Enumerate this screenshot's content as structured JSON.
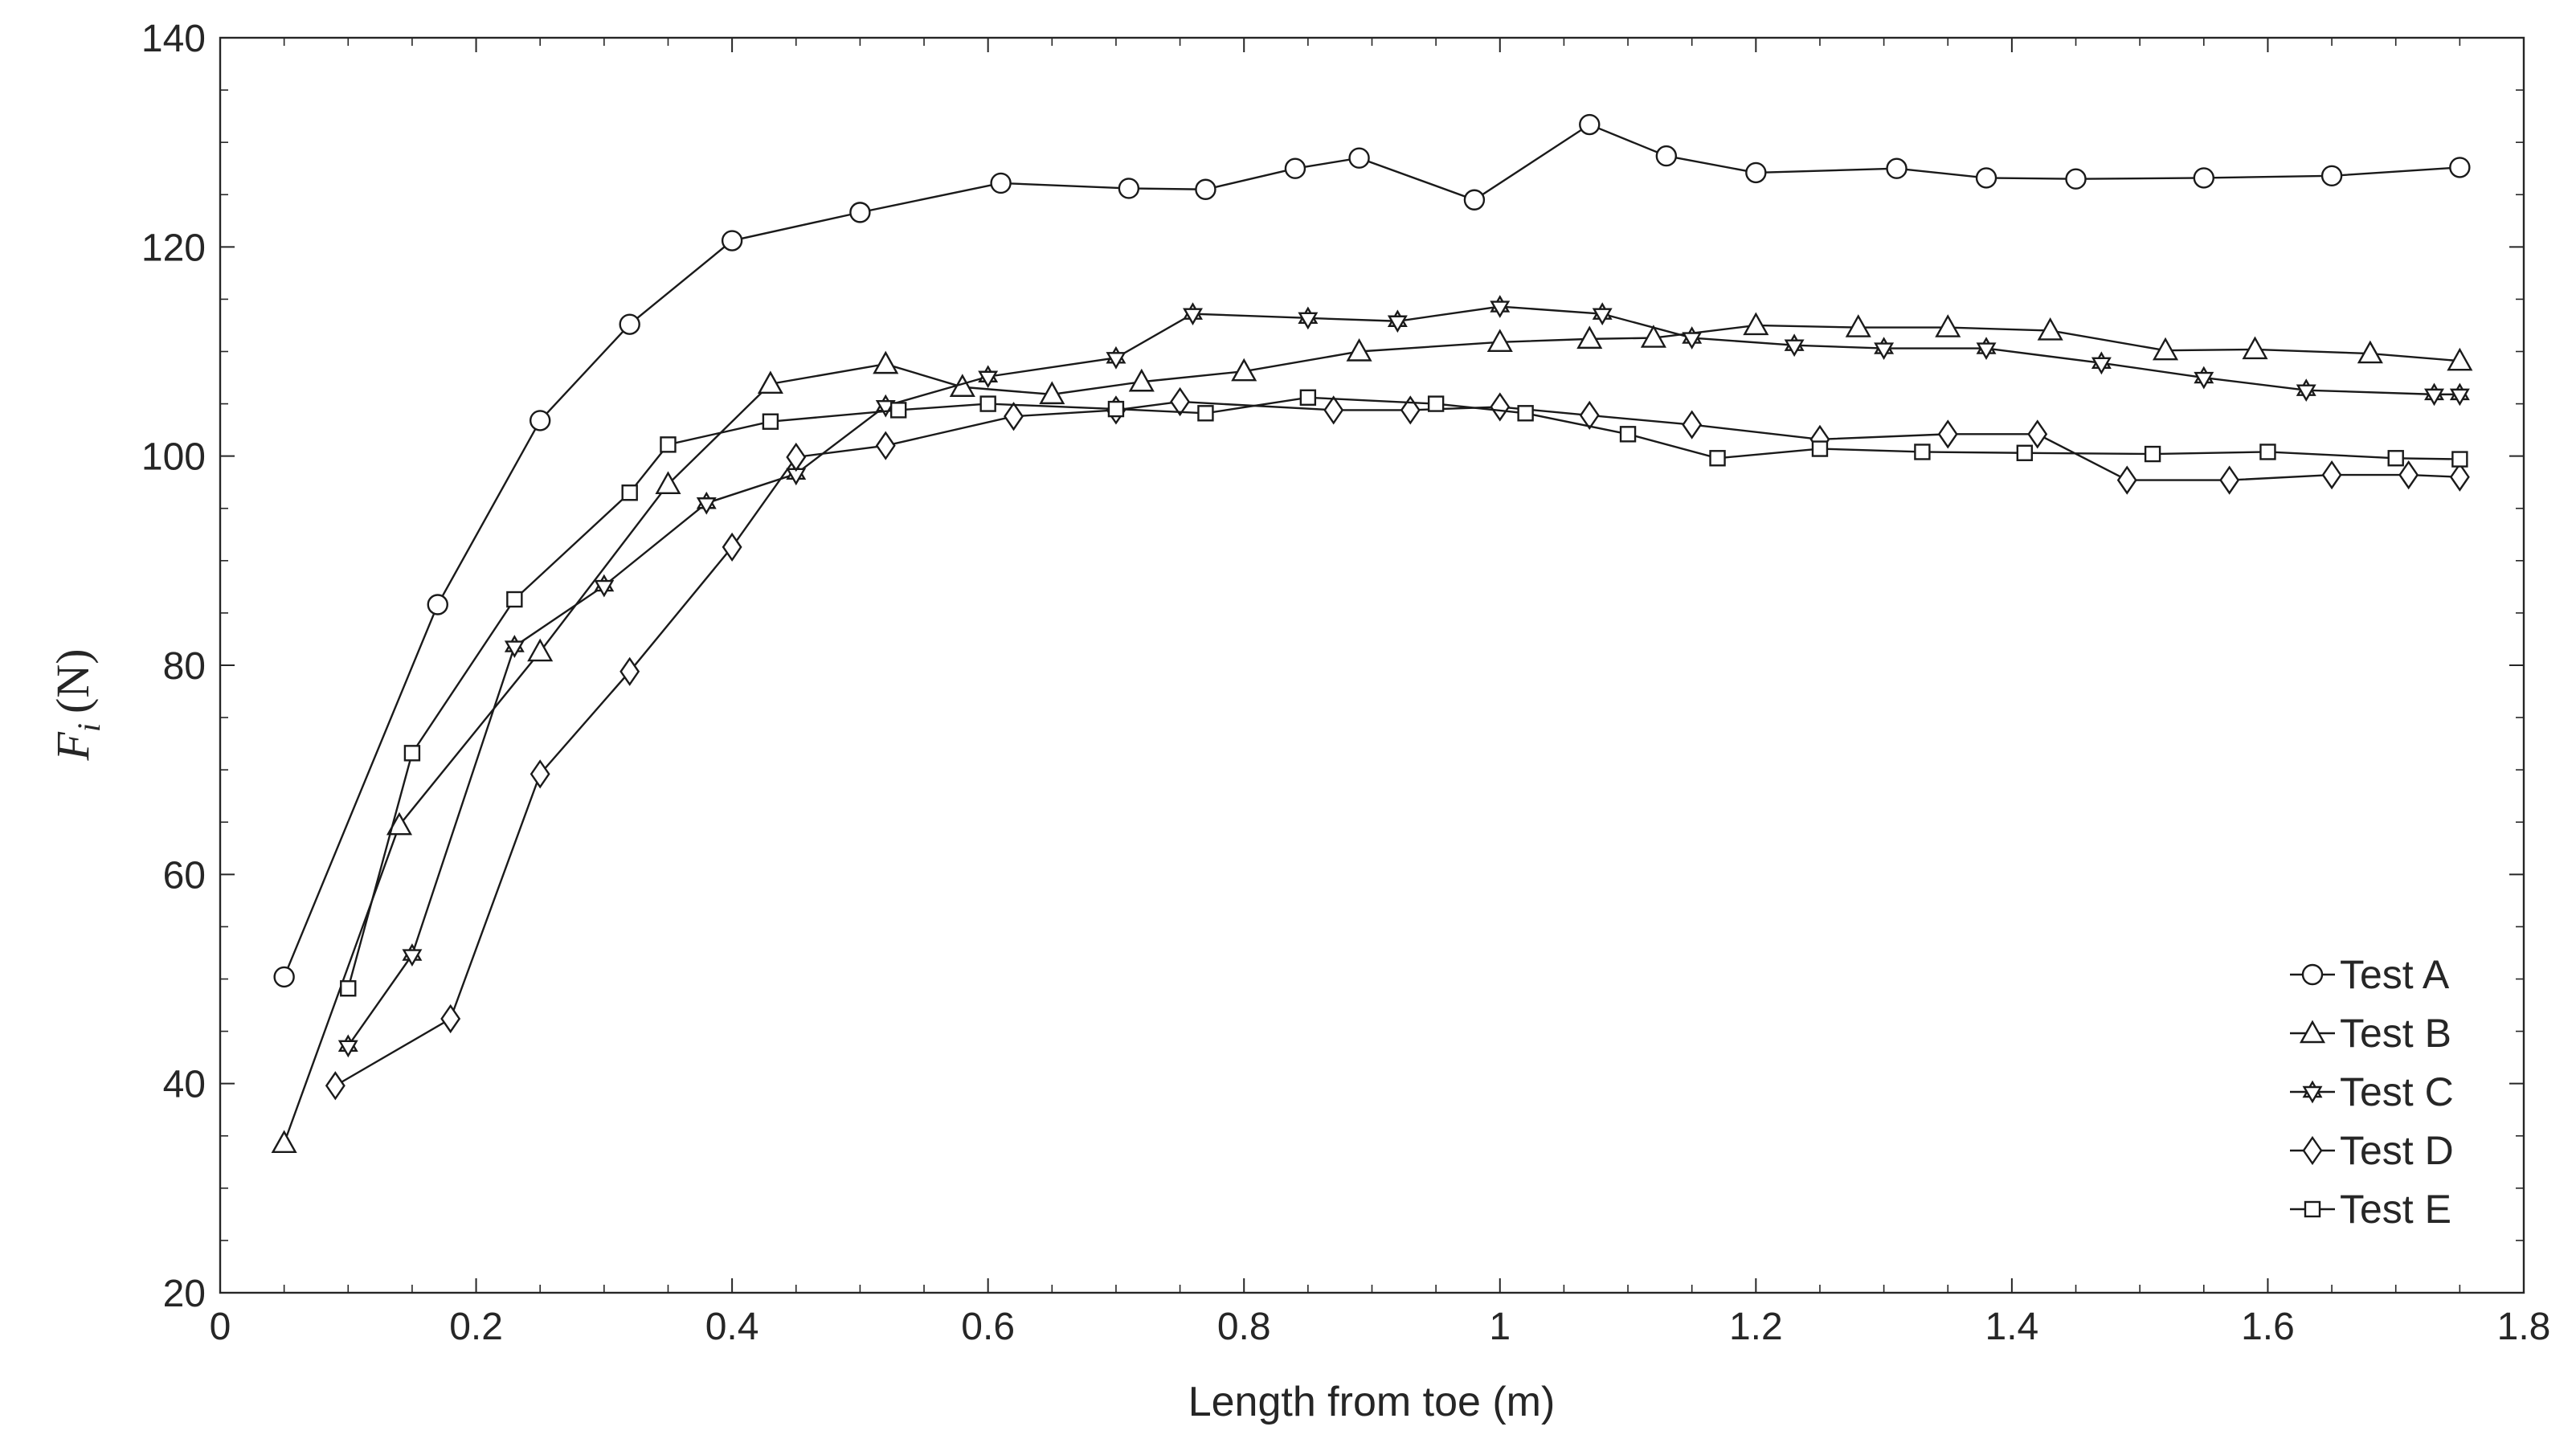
{
  "chart_data": {
    "type": "line",
    "xlabel": "Length from toe (m)",
    "ylabel_main": "F",
    "ylabel_sub": "i",
    "ylabel_unit": "(N)",
    "xlim": [
      0,
      1.8
    ],
    "ylim": [
      20,
      140
    ],
    "xticks": [
      0,
      0.2,
      0.4,
      0.6,
      0.8,
      1,
      1.2,
      1.4,
      1.6,
      1.8
    ],
    "xtick_labels": [
      "0",
      "0.2",
      "0.4",
      "0.6",
      "0.8",
      "1",
      "1.2",
      "1.4",
      "1.6",
      "1.8"
    ],
    "yticks": [
      20,
      40,
      60,
      80,
      100,
      120,
      140
    ],
    "ytick_labels": [
      "20",
      "40",
      "60",
      "80",
      "100",
      "120",
      "140"
    ],
    "grid": false,
    "legend_position": "bottom-right",
    "series": [
      {
        "name": "Test A",
        "marker": "circle",
        "x": [
          0.05,
          0.17,
          0.25,
          0.32,
          0.4,
          0.5,
          0.61,
          0.71,
          0.77,
          0.84,
          0.89,
          0.98,
          1.07,
          1.13,
          1.2,
          1.31,
          1.38,
          1.45,
          1.55,
          1.65,
          1.75
        ],
        "y": [
          50.2,
          85.8,
          103.4,
          112.6,
          120.6,
          123.3,
          126.1,
          125.6,
          125.5,
          127.5,
          128.5,
          124.5,
          131.7,
          128.7,
          127.1,
          127.5,
          126.6,
          126.5,
          126.6,
          126.8,
          127.6
        ]
      },
      {
        "name": "Test B",
        "marker": "triangle",
        "x": [
          0.05,
          0.14,
          0.25,
          0.35,
          0.43,
          0.52,
          0.58,
          0.65,
          0.72,
          0.8,
          0.89,
          1.0,
          1.07,
          1.12,
          1.2,
          1.28,
          1.35,
          1.43,
          1.52,
          1.59,
          1.68,
          1.75
        ],
        "y": [
          34.3,
          64.7,
          81.3,
          97.3,
          106.9,
          108.8,
          106.6,
          105.9,
          107.1,
          108.1,
          110.0,
          110.9,
          111.2,
          111.3,
          112.5,
          112.3,
          112.3,
          112.0,
          110.1,
          110.2,
          109.8,
          109.1
        ]
      },
      {
        "name": "Test C",
        "marker": "hexagram",
        "x": [
          0.1,
          0.15,
          0.23,
          0.3,
          0.38,
          0.45,
          0.52,
          0.6,
          0.7,
          0.76,
          0.85,
          0.92,
          1.0,
          1.08,
          1.15,
          1.23,
          1.3,
          1.38,
          1.47,
          1.55,
          1.63,
          1.73,
          1.75
        ],
        "y": [
          43.6,
          52.3,
          81.8,
          87.6,
          95.5,
          98.3,
          104.8,
          107.6,
          109.4,
          113.6,
          113.2,
          112.9,
          114.3,
          113.6,
          111.3,
          110.6,
          110.3,
          110.3,
          108.9,
          107.5,
          106.3,
          105.9,
          105.9
        ]
      },
      {
        "name": "Test D",
        "marker": "diamond",
        "x": [
          0.09,
          0.18,
          0.25,
          0.32,
          0.4,
          0.45,
          0.52,
          0.62,
          0.7,
          0.75,
          0.87,
          0.93,
          1.0,
          1.07,
          1.15,
          1.25,
          1.35,
          1.42,
          1.49,
          1.57,
          1.65,
          1.71,
          1.75
        ],
        "y": [
          39.8,
          46.2,
          69.6,
          79.4,
          91.3,
          99.9,
          101.0,
          103.8,
          104.4,
          105.2,
          104.4,
          104.4,
          104.7,
          103.9,
          103.0,
          101.6,
          102.1,
          102.1,
          97.7,
          97.7,
          98.2,
          98.2,
          98.0
        ]
      },
      {
        "name": "Test E",
        "marker": "square",
        "x": [
          0.1,
          0.15,
          0.23,
          0.32,
          0.35,
          0.43,
          0.53,
          0.6,
          0.7,
          0.77,
          0.85,
          0.95,
          1.02,
          1.1,
          1.17,
          1.25,
          1.33,
          1.41,
          1.51,
          1.6,
          1.7,
          1.75
        ],
        "y": [
          49.1,
          71.6,
          86.3,
          96.5,
          101.1,
          103.3,
          104.4,
          105.0,
          104.5,
          104.1,
          105.6,
          105.0,
          104.1,
          102.1,
          99.8,
          100.7,
          100.4,
          100.3,
          100.2,
          100.4,
          99.8,
          99.7
        ]
      }
    ]
  }
}
